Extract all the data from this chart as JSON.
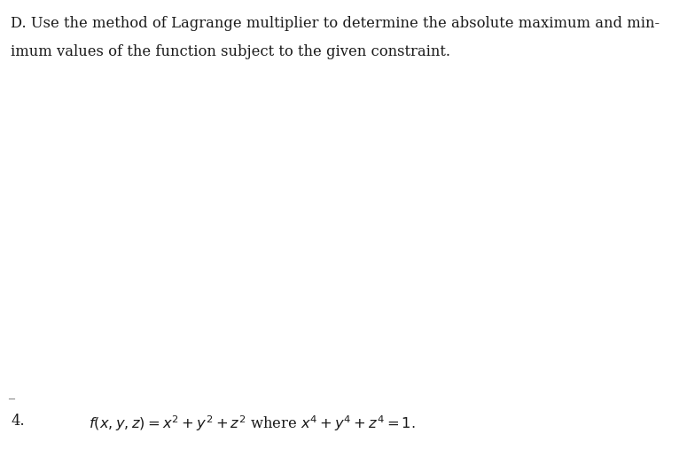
{
  "background_color": "#ffffff",
  "fig_width": 7.84,
  "fig_height": 5.07,
  "dpi": 100,
  "header_line1": "D. Use the method of Lagrange multiplier to determine the absolute maximum and min-",
  "header_line2": "imum values of the function subject to the given constraint.",
  "item_number": "4.",
  "math_expression": "$f(x, y, z) = x^2 + y^2 + z^2$ where $x^4 + y^4 + z^4 = 1.$",
  "header_fontsize": 11.8,
  "item_fontsize": 11.8,
  "math_fontsize": 11.8,
  "text_color": "#1a1a1a",
  "font_family": "serif"
}
